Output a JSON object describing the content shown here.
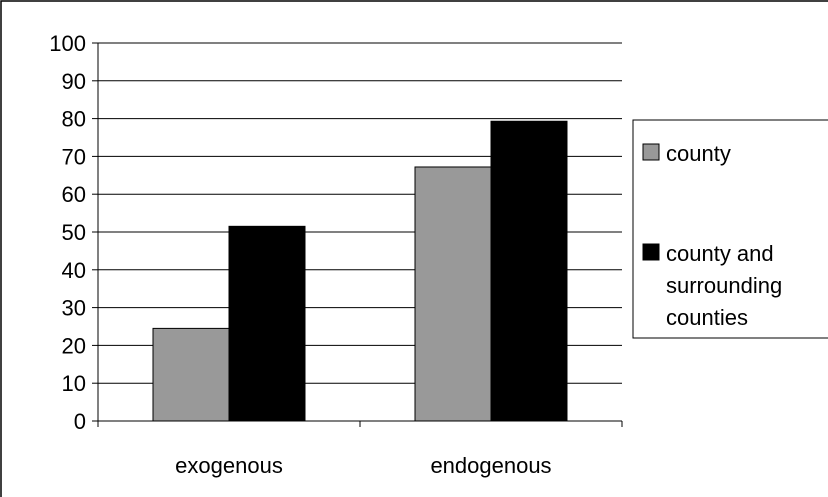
{
  "chart_data": {
    "type": "bar",
    "categories": [
      "exogenous",
      "endogenous"
    ],
    "series": [
      {
        "name": "county",
        "values": [
          24.5,
          67.2
        ],
        "color": "#999999"
      },
      {
        "name": "county and surrounding counties",
        "values": [
          51.5,
          79.3
        ],
        "color": "#000000"
      }
    ],
    "ylim": [
      0,
      100
    ],
    "yticks": [
      0,
      10,
      20,
      30,
      40,
      50,
      60,
      70,
      80,
      90,
      100
    ],
    "grid": true,
    "legend_position": "right",
    "legend_lines": [
      [
        "county"
      ],
      [
        "county and",
        "surrounding",
        "counties"
      ]
    ]
  }
}
